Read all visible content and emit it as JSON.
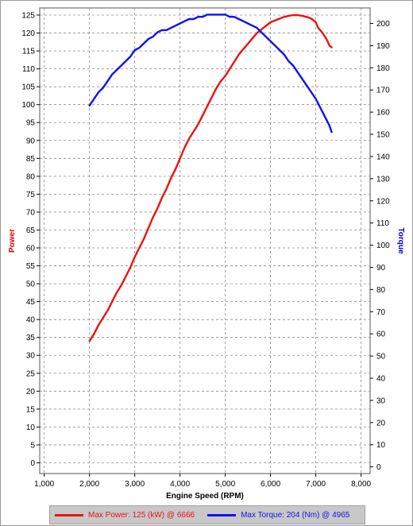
{
  "chart_data": {
    "type": "line",
    "xlabel": "Engine Speed (RPM)",
    "ylabel_left": "Power",
    "ylabel_right": "Torque",
    "xlim": [
      900,
      8200
    ],
    "ylim_left": [
      -3,
      127
    ],
    "ylim_right": [
      -3,
      207
    ],
    "x_ticks": [
      1000,
      2000,
      3000,
      4000,
      5000,
      6000,
      7000,
      8000
    ],
    "x_tick_labels": [
      "1,000",
      "2,000",
      "3,000",
      "4,000",
      "5,000",
      "6,000",
      "7,000",
      "8,000"
    ],
    "y_left_ticks": [
      0,
      5,
      10,
      15,
      20,
      25,
      30,
      35,
      40,
      45,
      50,
      55,
      60,
      65,
      70,
      75,
      80,
      85,
      90,
      95,
      100,
      105,
      110,
      115,
      120,
      125
    ],
    "y_right_ticks": [
      0,
      10,
      20,
      30,
      40,
      50,
      60,
      70,
      80,
      90,
      100,
      110,
      120,
      130,
      140,
      150,
      160,
      170,
      180,
      190,
      200
    ],
    "grid": true,
    "series": [
      {
        "name": "Power",
        "axis": "left",
        "color": "#ee1111",
        "x": [
          2000,
          2100,
          2200,
          2300,
          2400,
          2500,
          2600,
          2700,
          2800,
          2900,
          3000,
          3100,
          3200,
          3300,
          3400,
          3500,
          3600,
          3700,
          3800,
          3900,
          4000,
          4100,
          4200,
          4300,
          4400,
          4500,
          4600,
          4700,
          4800,
          4900,
          5000,
          5100,
          5200,
          5300,
          5400,
          5500,
          5600,
          5700,
          5800,
          5900,
          6000,
          6100,
          6200,
          6300,
          6400,
          6500,
          6600,
          6700,
          6800,
          6900,
          7000,
          7050,
          7150,
          7250,
          7300,
          7350
        ],
        "values": [
          34,
          36,
          38.5,
          40.5,
          42.5,
          45,
          47.5,
          49.5,
          52,
          54.5,
          57.5,
          60,
          62.5,
          65.5,
          68.5,
          71,
          74,
          76.5,
          79.5,
          82,
          85,
          88,
          90.5,
          92.5,
          94.5,
          97,
          99.5,
          102,
          104.5,
          106.5,
          108,
          110,
          112,
          114,
          115.5,
          117,
          118.5,
          120,
          121,
          122,
          123,
          123.5,
          124,
          124.5,
          124.8,
          125,
          125,
          124.8,
          124.5,
          124,
          123,
          121.5,
          120,
          118,
          116.5,
          116
        ]
      },
      {
        "name": "Torque",
        "axis": "right",
        "color": "#1111ee",
        "x": [
          2000,
          2100,
          2200,
          2300,
          2400,
          2500,
          2600,
          2700,
          2800,
          2900,
          3000,
          3100,
          3200,
          3300,
          3400,
          3500,
          3600,
          3700,
          3800,
          3900,
          4000,
          4100,
          4200,
          4300,
          4400,
          4500,
          4600,
          4700,
          4800,
          4900,
          5000,
          5100,
          5200,
          5300,
          5400,
          5500,
          5600,
          5700,
          5800,
          5900,
          6000,
          6100,
          6200,
          6300,
          6400,
          6500,
          6600,
          6700,
          6800,
          6900,
          7000,
          7100,
          7200,
          7250,
          7300,
          7350
        ],
        "values": [
          163,
          166,
          169,
          171,
          174,
          177,
          179,
          181,
          183,
          185,
          188,
          189,
          191,
          193,
          194,
          196,
          197,
          197,
          198,
          199,
          200,
          201,
          202,
          202,
          203,
          203,
          204,
          204,
          204,
          204,
          204,
          203,
          203,
          202,
          201,
          200,
          199,
          198,
          196,
          194,
          192,
          190,
          188,
          186,
          183,
          181,
          178,
          175,
          172,
          169,
          166,
          162,
          158,
          156,
          154,
          151
        ]
      }
    ],
    "legend": [
      {
        "label": "Max Power: 125 (kW) @ 6666",
        "color": "#ee1111"
      },
      {
        "label": "Max Torque: 204 (Nm) @ 4965",
        "color": "#1111ee"
      }
    ]
  }
}
